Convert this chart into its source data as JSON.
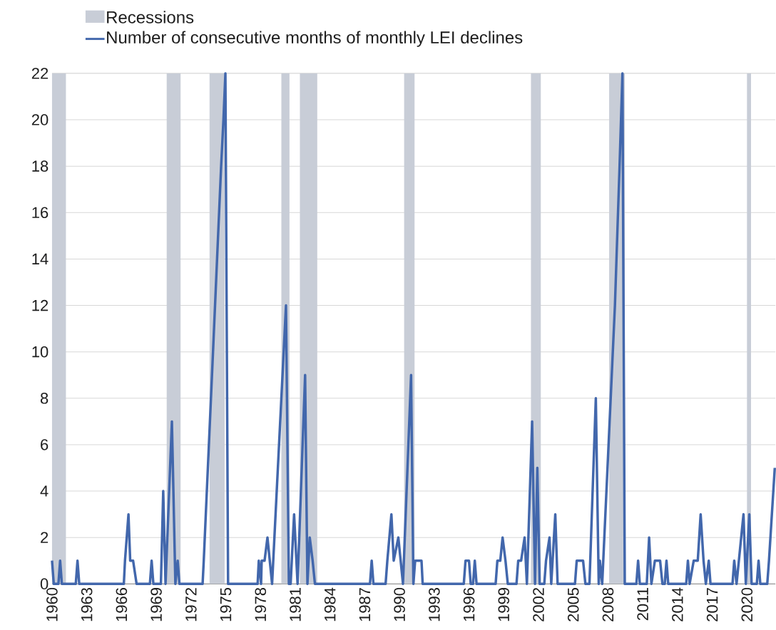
{
  "chart_data": {
    "type": "line",
    "series": [
      {
        "name": "Number of consecutive months of monthly LEI declines",
        "color": "#4267ac",
        "x": [
          1960.0,
          1960.15,
          1960.55,
          1960.7,
          1960.85,
          1962.05,
          1962.2,
          1962.35,
          1966.2,
          1966.3,
          1966.6,
          1966.75,
          1967.0,
          1967.3,
          1968.45,
          1968.6,
          1968.75,
          1969.4,
          1969.6,
          1969.8,
          1970.35,
          1970.65,
          1970.85,
          1971.0,
          1973.0,
          1973.1,
          1973.9,
          1974.6,
          1974.8,
          1974.97,
          1975.2,
          1977.75,
          1977.85,
          1978.05,
          1978.1,
          1978.35,
          1978.6,
          1978.8,
          1979.0,
          1980.2,
          1980.45,
          1980.6,
          1980.9,
          1981.2,
          1981.85,
          1982.05,
          1982.25,
          1982.5,
          1982.7,
          1987.45,
          1987.6,
          1987.75,
          1988.8,
          1988.95,
          1989.3,
          1989.5,
          1989.9,
          1990.1,
          1990.3,
          1991.0,
          1991.2,
          1991.35,
          1991.9,
          1992.0,
          1995.55,
          1995.7,
          1996.0,
          1996.15,
          1996.35,
          1996.5,
          1996.65,
          1998.3,
          1998.45,
          1998.7,
          1998.9,
          1999.15,
          1999.35,
          2000.1,
          2000.25,
          2000.5,
          2000.8,
          2001.0,
          2001.45,
          2001.7,
          2001.9,
          2002.1,
          2002.5,
          2002.65,
          2002.95,
          2003.1,
          2003.45,
          2003.65,
          2005.15,
          2005.3,
          2005.85,
          2006.05,
          2006.4,
          2006.95,
          2007.2,
          2007.3,
          2007.5,
          2008.6,
          2009.0,
          2009.25,
          2009.45,
          2010.45,
          2010.6,
          2010.75,
          2011.35,
          2011.55,
          2011.75,
          2012.05,
          2012.5,
          2012.7,
          2012.9,
          2013.05,
          2013.2,
          2014.75,
          2014.9,
          2015.05,
          2015.4,
          2015.75,
          2016.0,
          2016.25,
          2016.45,
          2016.7,
          2016.85,
          2018.75,
          2018.9,
          2019.1,
          2019.7,
          2019.9,
          2020.2,
          2020.4,
          2020.85,
          2021.0,
          2021.15,
          2021.75,
          2021.9,
          2022.4
        ],
        "values": [
          1,
          0,
          0,
          1,
          0,
          0,
          1,
          0,
          0,
          1,
          3,
          1,
          1,
          0,
          0,
          1,
          0,
          0,
          4,
          0,
          7,
          0,
          1,
          0,
          0,
          1,
          10,
          18,
          20,
          22,
          0,
          0,
          1,
          0,
          1,
          1,
          2,
          1,
          0,
          12,
          0,
          0,
          3,
          0,
          9,
          0,
          2,
          1,
          0,
          0,
          1,
          0,
          0,
          1,
          3,
          1,
          2,
          1,
          0,
          9,
          0,
          1,
          1,
          0,
          0,
          1,
          1,
          0,
          0,
          1,
          0,
          0,
          1,
          1,
          2,
          1,
          0,
          0,
          1,
          1,
          2,
          0,
          7,
          0,
          5,
          0,
          0,
          1,
          2,
          0,
          3,
          0,
          0,
          1,
          1,
          0,
          0,
          8,
          0,
          1,
          0,
          12,
          18,
          22,
          0,
          0,
          1,
          0,
          0,
          2,
          0,
          1,
          1,
          0,
          0,
          1,
          0,
          0,
          1,
          0,
          1,
          1,
          3,
          1,
          0,
          1,
          0,
          0,
          1,
          0,
          3,
          0,
          3,
          0,
          0,
          1,
          0,
          0,
          1,
          5
        ]
      }
    ],
    "bands": [
      {
        "axis": "x",
        "from": 1960.0,
        "to": 1961.2,
        "label": "Recessions",
        "color": "#c8cdd7"
      },
      {
        "axis": "x",
        "from": 1969.9,
        "to": 1971.1,
        "color": "#c8cdd7"
      },
      {
        "axis": "x",
        "from": 1973.6,
        "to": 1974.9,
        "color": "#c8cdd7"
      },
      {
        "axis": "x",
        "from": 1979.8,
        "to": 1980.5,
        "color": "#c8cdd7"
      },
      {
        "axis": "x",
        "from": 1981.4,
        "to": 1982.9,
        "color": "#c8cdd7"
      },
      {
        "axis": "x",
        "from": 1990.4,
        "to": 1991.3,
        "color": "#c8cdd7"
      },
      {
        "axis": "x",
        "from": 2001.35,
        "to": 2002.2,
        "color": "#c8cdd7"
      },
      {
        "axis": "x",
        "from": 2008.1,
        "to": 2009.45,
        "color": "#c8cdd7"
      },
      {
        "axis": "x",
        "from": 2020.0,
        "to": 2020.35,
        "color": "#c8cdd7"
      }
    ],
    "xlim": [
      1960.0,
      2022.45
    ],
    "xticks": [
      1960,
      1963,
      1966,
      1969,
      1972,
      1975,
      1978,
      1981,
      1984,
      1987,
      1990,
      1993,
      1996,
      1999,
      2002,
      2005,
      2008,
      2011,
      2014,
      2017,
      2020
    ],
    "ylim": [
      0,
      22
    ],
    "yticks": [
      0,
      2,
      4,
      6,
      8,
      10,
      12,
      14,
      16,
      18,
      20,
      22
    ],
    "grid": "y",
    "legend": "top left",
    "marker": "none",
    "line_style": "solid"
  }
}
